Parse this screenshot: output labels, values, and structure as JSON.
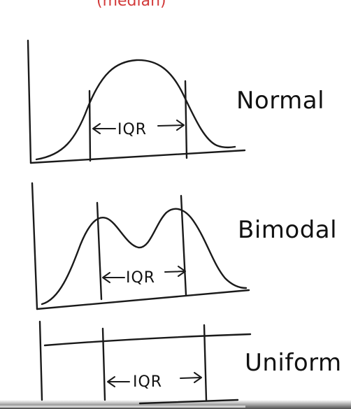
{
  "header_cut_text": "(median)",
  "panels": [
    {
      "distribution_label": "Normal",
      "iqr_label": "IQR"
    },
    {
      "distribution_label": "Bimodal",
      "iqr_label": "IQR"
    },
    {
      "distribution_label": "Uniform",
      "iqr_label": "IQR"
    }
  ],
  "video_progress_fraction": 0.7
}
